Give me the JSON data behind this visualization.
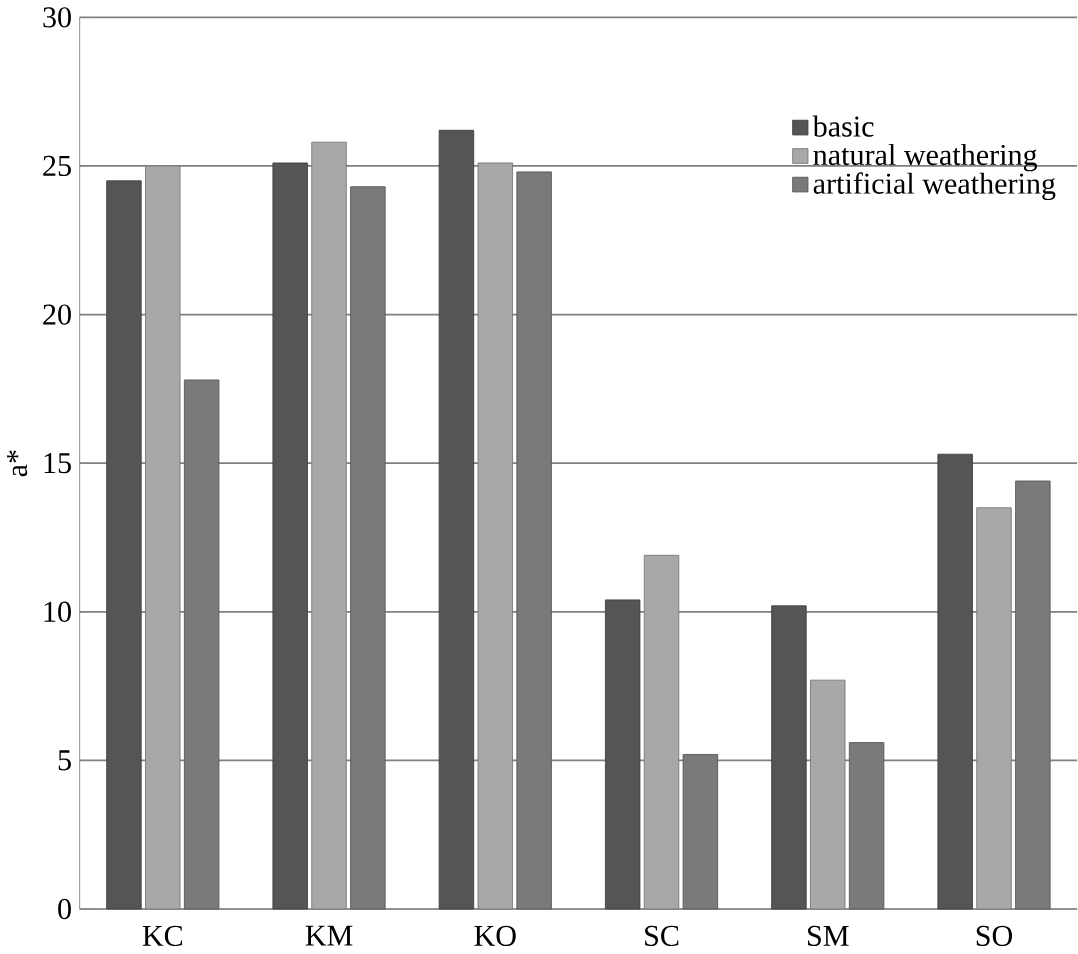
{
  "chart_data": {
    "type": "bar",
    "ylabel": "a*",
    "categories": [
      "KC",
      "KM",
      "KO",
      "SC",
      "SM",
      "SO"
    ],
    "series": [
      {
        "name": "basic",
        "color": "#555555",
        "values": [
          24.5,
          25.1,
          26.2,
          10.4,
          10.2,
          15.3
        ]
      },
      {
        "name": "natural weathering",
        "color": "#a8a8a8",
        "values": [
          25.0,
          25.8,
          25.1,
          11.9,
          7.7,
          13.5
        ]
      },
      {
        "name": "artificial weathering",
        "color": "#7a7a7a",
        "values": [
          17.8,
          24.3,
          24.8,
          5.2,
          5.6,
          14.4
        ]
      }
    ],
    "ylim": [
      0,
      30
    ],
    "yticks": [
      0,
      5,
      10,
      15,
      20,
      25,
      30
    ],
    "grid": "y",
    "legend": "top right"
  }
}
